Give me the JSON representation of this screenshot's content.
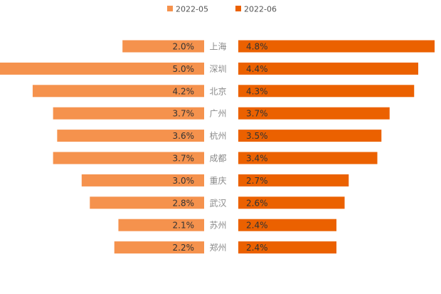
{
  "chart_data": {
    "type": "bar",
    "orientation": "horizontal-butterfly",
    "categories": [
      "上海",
      "深圳",
      "北京",
      "广州",
      "杭州",
      "成都",
      "重庆",
      "武汉",
      "苏州",
      "郑州"
    ],
    "series": [
      {
        "name": "2022-05",
        "color": "#F5924D",
        "values": [
          2.0,
          5.0,
          4.2,
          3.7,
          3.6,
          3.7,
          3.0,
          2.8,
          2.1,
          2.2
        ],
        "labels": [
          "2.0%",
          "5.0%",
          "4.2%",
          "3.7%",
          "3.6%",
          "3.7%",
          "3.0%",
          "2.8%",
          "2.1%",
          "2.2%"
        ]
      },
      {
        "name": "2022-06",
        "color": "#EB6100",
        "values": [
          4.8,
          4.4,
          4.3,
          3.7,
          3.5,
          3.4,
          2.7,
          2.6,
          2.4,
          2.4
        ],
        "labels": [
          "4.8%",
          "4.4%",
          "4.3%",
          "3.7%",
          "3.5%",
          "3.4%",
          "2.7%",
          "2.6%",
          "2.4%",
          "2.4%"
        ]
      }
    ],
    "xlim": [
      0,
      5.0
    ],
    "title": "",
    "xlabel": "",
    "ylabel": "",
    "legend_position": "top-center",
    "grid": false
  }
}
